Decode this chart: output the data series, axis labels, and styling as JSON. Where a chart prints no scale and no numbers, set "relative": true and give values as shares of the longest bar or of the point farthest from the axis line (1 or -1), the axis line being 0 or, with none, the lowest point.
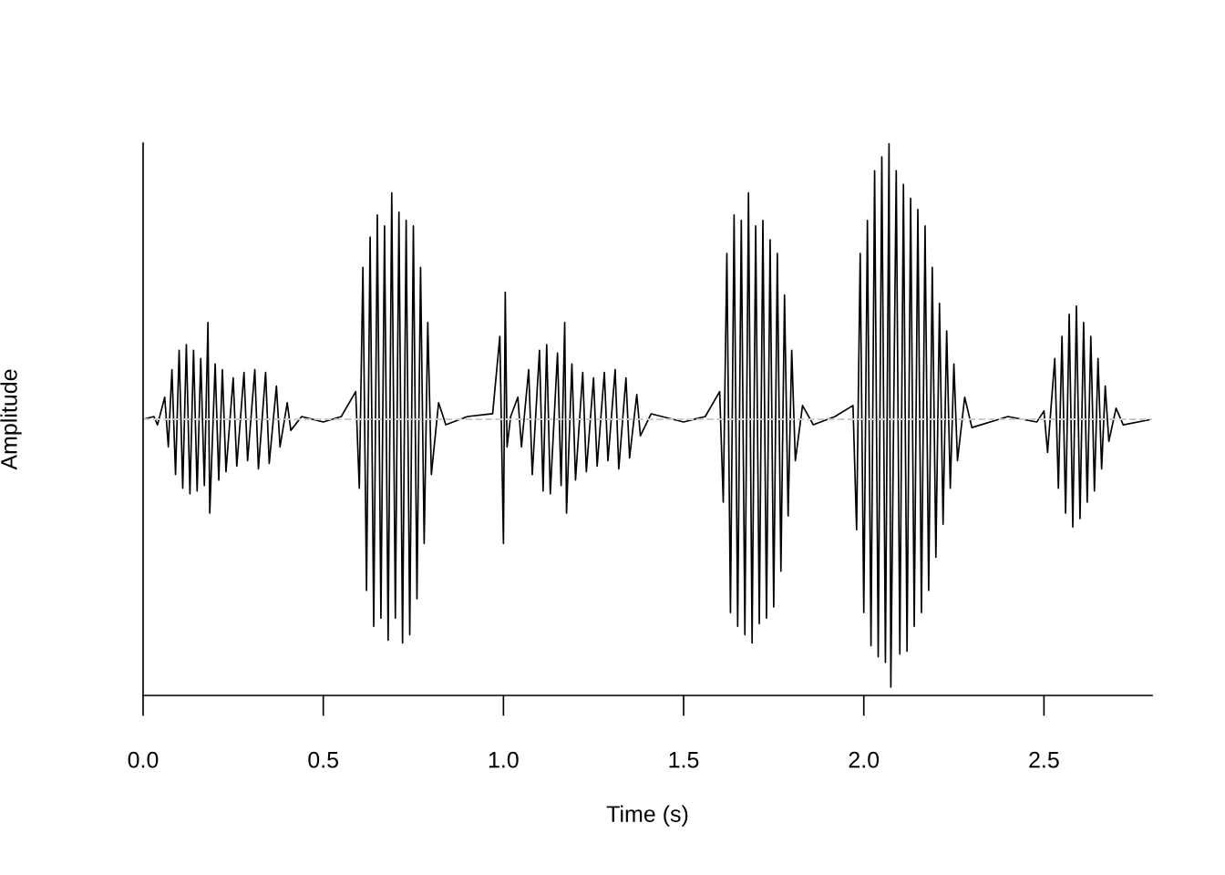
{
  "chart_data": {
    "type": "line",
    "xlabel": "Time (s)",
    "ylabel": "Amplitude",
    "relative": true,
    "tick_labels": "x",
    "grid": false,
    "legend": false,
    "marker": "none",
    "line_style": "solid",
    "xlim": [
      0,
      2.8
    ],
    "xticks": [
      {
        "value": 0,
        "label": "0.0"
      },
      {
        "value": 0.5,
        "label": "0.5"
      },
      {
        "value": 1,
        "label": "1.0"
      },
      {
        "value": 1.5,
        "label": "1.5"
      },
      {
        "value": 2,
        "label": "2.0"
      },
      {
        "value": 2.5,
        "label": "2.5"
      }
    ],
    "ref_lines": [
      {
        "axis": "y",
        "value": 0,
        "label": null,
        "color": "#cccccc",
        "line_style": "dashed"
      }
    ],
    "series": [
      {
        "color": "#000000",
        "x": [
          0.0,
          0.03,
          0.04,
          0.06,
          0.07,
          0.08,
          0.09,
          0.1,
          0.11,
          0.12,
          0.13,
          0.14,
          0.15,
          0.16,
          0.17,
          0.18,
          0.185,
          0.2,
          0.21,
          0.22,
          0.23,
          0.25,
          0.26,
          0.28,
          0.29,
          0.31,
          0.32,
          0.34,
          0.35,
          0.37,
          0.38,
          0.4,
          0.41,
          0.44,
          0.5,
          0.55,
          0.59,
          0.6,
          0.61,
          0.62,
          0.63,
          0.64,
          0.65,
          0.66,
          0.67,
          0.68,
          0.69,
          0.7,
          0.71,
          0.72,
          0.73,
          0.74,
          0.75,
          0.76,
          0.77,
          0.78,
          0.79,
          0.8,
          0.82,
          0.84,
          0.9,
          0.97,
          0.99,
          1.0,
          1.005,
          1.01,
          1.02,
          1.04,
          1.05,
          1.07,
          1.08,
          1.1,
          1.11,
          1.12,
          1.13,
          1.15,
          1.16,
          1.17,
          1.175,
          1.19,
          1.2,
          1.22,
          1.23,
          1.25,
          1.26,
          1.28,
          1.29,
          1.31,
          1.32,
          1.34,
          1.35,
          1.37,
          1.38,
          1.41,
          1.5,
          1.56,
          1.6,
          1.61,
          1.62,
          1.63,
          1.64,
          1.65,
          1.66,
          1.67,
          1.68,
          1.69,
          1.7,
          1.71,
          1.72,
          1.73,
          1.74,
          1.75,
          1.76,
          1.77,
          1.78,
          1.79,
          1.8,
          1.81,
          1.83,
          1.86,
          1.92,
          1.97,
          1.98,
          1.99,
          2.0,
          2.01,
          2.02,
          2.03,
          2.04,
          2.05,
          2.06,
          2.07,
          2.075,
          2.09,
          2.1,
          2.11,
          2.12,
          2.13,
          2.14,
          2.15,
          2.16,
          2.17,
          2.18,
          2.19,
          2.2,
          2.21,
          2.22,
          2.23,
          2.24,
          2.25,
          2.26,
          2.28,
          2.3,
          2.4,
          2.48,
          2.5,
          2.51,
          2.53,
          2.54,
          2.55,
          2.56,
          2.57,
          2.58,
          2.59,
          2.6,
          2.61,
          2.62,
          2.63,
          2.64,
          2.65,
          2.66,
          2.67,
          2.68,
          2.7,
          2.72,
          2.8
        ],
        "values": [
          0,
          0.01,
          -0.02,
          0.08,
          -0.1,
          0.18,
          -0.2,
          0.25,
          -0.25,
          0.27,
          -0.27,
          0.25,
          -0.26,
          0.22,
          -0.24,
          0.35,
          -0.34,
          0.2,
          -0.22,
          0.18,
          -0.19,
          0.15,
          -0.17,
          0.17,
          -0.15,
          0.18,
          -0.18,
          0.17,
          -0.16,
          0.12,
          -0.1,
          0.06,
          -0.04,
          0.01,
          -0.01,
          0.01,
          0.1,
          -0.25,
          0.55,
          -0.62,
          0.66,
          -0.75,
          0.74,
          -0.72,
          0.7,
          -0.8,
          0.82,
          -0.72,
          0.75,
          -0.81,
          0.72,
          -0.78,
          0.7,
          -0.65,
          0.55,
          -0.45,
          0.35,
          -0.2,
          0.06,
          -0.02,
          0.01,
          0.02,
          0.3,
          -0.45,
          0.46,
          -0.1,
          0.01,
          0.08,
          -0.1,
          0.18,
          -0.2,
          0.25,
          -0.26,
          0.27,
          -0.27,
          0.24,
          -0.24,
          0.35,
          -0.34,
          0.2,
          -0.22,
          0.17,
          -0.19,
          0.15,
          -0.17,
          0.17,
          -0.15,
          0.18,
          -0.18,
          0.15,
          -0.14,
          0.09,
          -0.06,
          0.02,
          -0.01,
          0.01,
          0.1,
          -0.3,
          0.6,
          -0.7,
          0.74,
          -0.75,
          0.72,
          -0.78,
          0.82,
          -0.81,
          0.7,
          -0.74,
          0.72,
          -0.72,
          0.65,
          -0.68,
          0.6,
          -0.55,
          0.45,
          -0.35,
          0.25,
          -0.15,
          0.05,
          -0.02,
          0.01,
          0.05,
          -0.4,
          0.6,
          -0.7,
          0.72,
          -0.82,
          0.9,
          -0.86,
          0.95,
          -0.88,
          1.0,
          -0.97,
          0.9,
          -0.85,
          0.85,
          -0.84,
          0.8,
          -0.75,
          0.76,
          -0.7,
          0.7,
          -0.62,
          0.55,
          -0.5,
          0.42,
          -0.38,
          0.32,
          -0.25,
          0.2,
          -0.15,
          0.08,
          -0.03,
          0.01,
          -0.01,
          0.03,
          -0.12,
          0.22,
          -0.25,
          0.3,
          -0.34,
          0.38,
          -0.39,
          0.41,
          -0.36,
          0.35,
          -0.3,
          0.3,
          -0.26,
          0.22,
          -0.18,
          0.12,
          -0.08,
          0.04,
          -0.02,
          0
        ]
      }
    ]
  }
}
